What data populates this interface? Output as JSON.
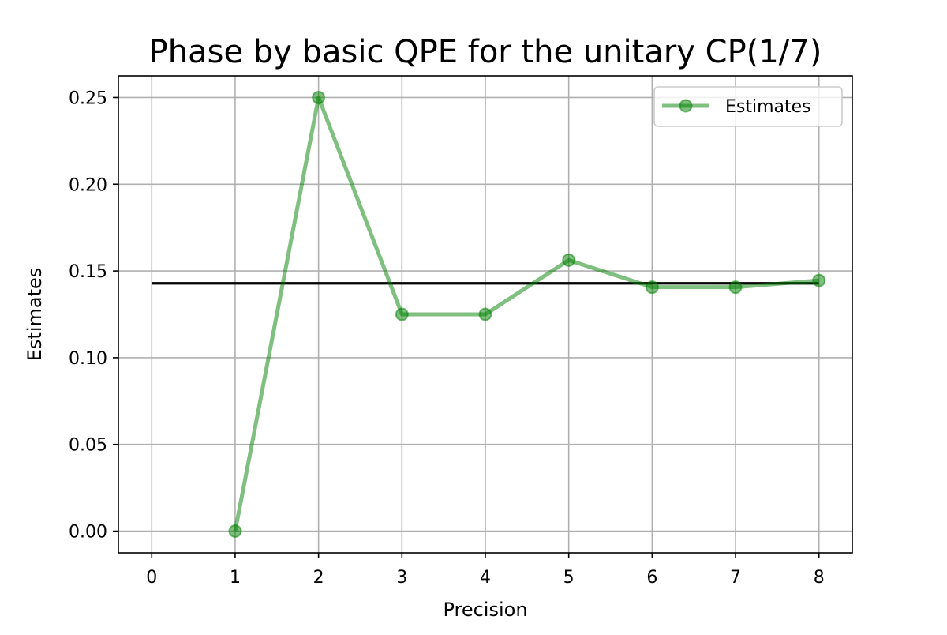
{
  "chart_data": {
    "type": "line",
    "title": "Phase by basic QPE for the unitary CP(1/7)",
    "xlabel": "Precision",
    "ylabel": "Estimates",
    "xlim": [
      -0.4,
      8.4
    ],
    "ylim": [
      -0.0125,
      0.2625
    ],
    "xticks": [
      0,
      1,
      2,
      3,
      4,
      5,
      6,
      7,
      8
    ],
    "yticks": [
      0.0,
      0.05,
      0.1,
      0.15,
      0.2,
      0.25
    ],
    "xtick_labels": [
      "0",
      "1",
      "2",
      "3",
      "4",
      "5",
      "6",
      "7",
      "8"
    ],
    "ytick_labels": [
      "0.00",
      "0.05",
      "0.10",
      "0.15",
      "0.20",
      "0.25"
    ],
    "grid": true,
    "legend_position": "top-right",
    "series": [
      {
        "name": "Estimates",
        "x": [
          1,
          2,
          3,
          4,
          5,
          6,
          7,
          8
        ],
        "y": [
          0.0,
          0.25,
          0.125,
          0.125,
          0.15625,
          0.140625,
          0.140625,
          0.14453125
        ],
        "color": "#008000",
        "marker": "circle"
      }
    ],
    "reference_line": {
      "x": [
        0,
        8
      ],
      "y": [
        0.142857,
        0.142857
      ],
      "color": "#000000"
    }
  }
}
